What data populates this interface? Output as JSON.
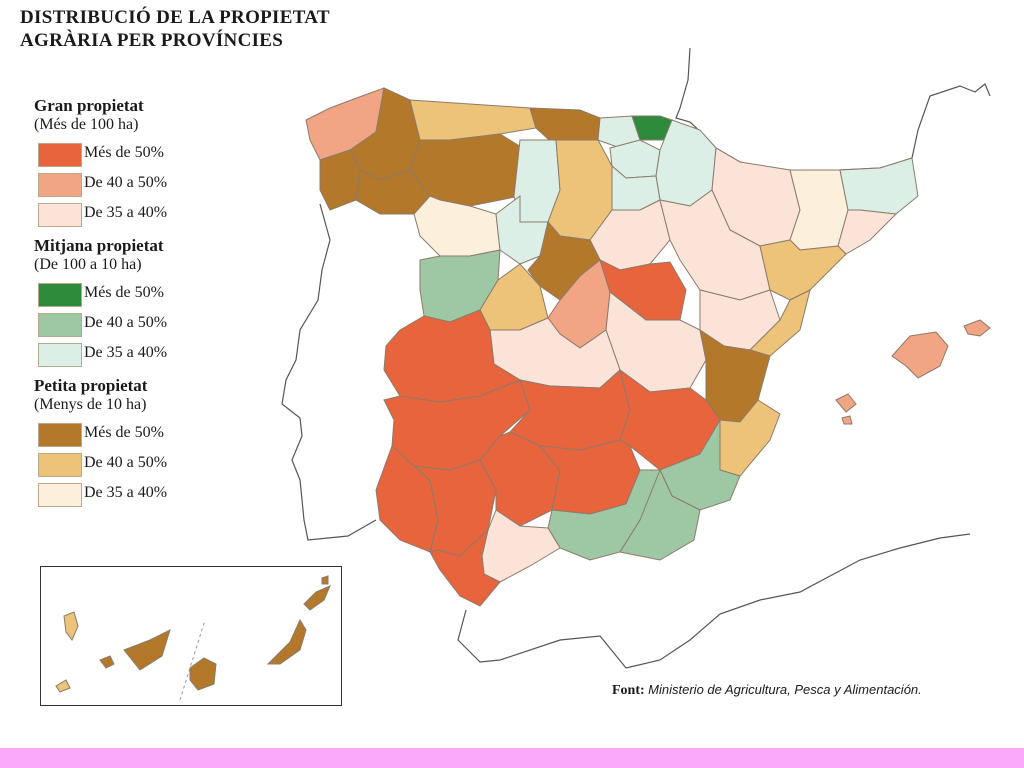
{
  "title": {
    "line1": "DISTRIBUCIÓ DE LA PROPIETAT",
    "line2": "AGRÀRIA PER PROVÍNCIES"
  },
  "legend": {
    "groups": [
      {
        "heading": "Gran propietat",
        "subheading": "(Més de 100 ha)",
        "items": [
          {
            "label": "Més de 50%",
            "color": "#e8643c"
          },
          {
            "label": "De 40 a 50%",
            "color": "#f2a584"
          },
          {
            "label": "De 35 a 40%",
            "color": "#fbe3d8"
          }
        ]
      },
      {
        "heading": "Mitjana propietat",
        "subheading": "(De 100 a 10 ha)",
        "items": [
          {
            "label": "Més de 50%",
            "color": "#2e8b3c"
          },
          {
            "label": "De 40 a 50%",
            "color": "#9ec8a4"
          },
          {
            "label": "De 35 a 40%",
            "color": "#dcefe6"
          }
        ]
      },
      {
        "heading": "Petita propietat",
        "subheading": "(Menys de 10 ha)",
        "items": [
          {
            "label": "Més de 50%",
            "color": "#b3782a"
          },
          {
            "label": "De 40 a 50%",
            "color": "#ecc378"
          },
          {
            "label": "De 35 a 40%",
            "color": "#fcf0dc"
          }
        ]
      }
    ]
  },
  "source": {
    "label": "Font:",
    "value": "Ministerio de Agricultura, Pesca y Alimentación."
  },
  "colors": {
    "border_line": "#555555",
    "province_outline": "#8c7a6a",
    "bottom_bar": "#fbaafb"
  }
}
